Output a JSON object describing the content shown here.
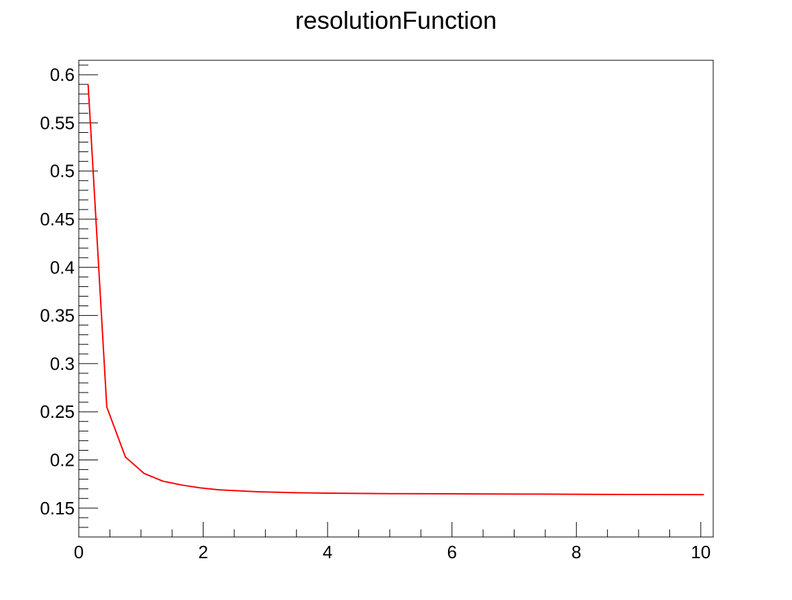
{
  "chart_data": {
    "type": "line",
    "title": "resolutionFunction",
    "xlabel": "",
    "ylabel": "",
    "xlim": [
      0,
      10.2
    ],
    "ylim": [
      0.12,
      0.615
    ],
    "x_ticks": [
      "0",
      "2",
      "4",
      "6",
      "8",
      "10"
    ],
    "y_ticks": [
      "0.15",
      "0.2",
      "0.25",
      "0.3",
      "0.35",
      "0.4",
      "0.45",
      "0.5",
      "0.55",
      "0.6"
    ],
    "grid": false,
    "legend": "none",
    "line_color": "#ff0000",
    "series": [
      {
        "x": [
          0.15,
          0.45,
          0.75,
          1.05,
          1.35,
          1.65,
          1.95,
          2.25,
          2.55,
          2.85,
          3.5,
          4.0,
          5.0,
          6.0,
          7.4,
          8.5,
          10.05
        ],
        "values": [
          0.59,
          0.255,
          0.203,
          0.186,
          0.178,
          0.174,
          0.171,
          0.169,
          0.168,
          0.167,
          0.166,
          0.1655,
          0.165,
          0.1648,
          0.1645,
          0.1642,
          0.164
        ]
      }
    ]
  }
}
